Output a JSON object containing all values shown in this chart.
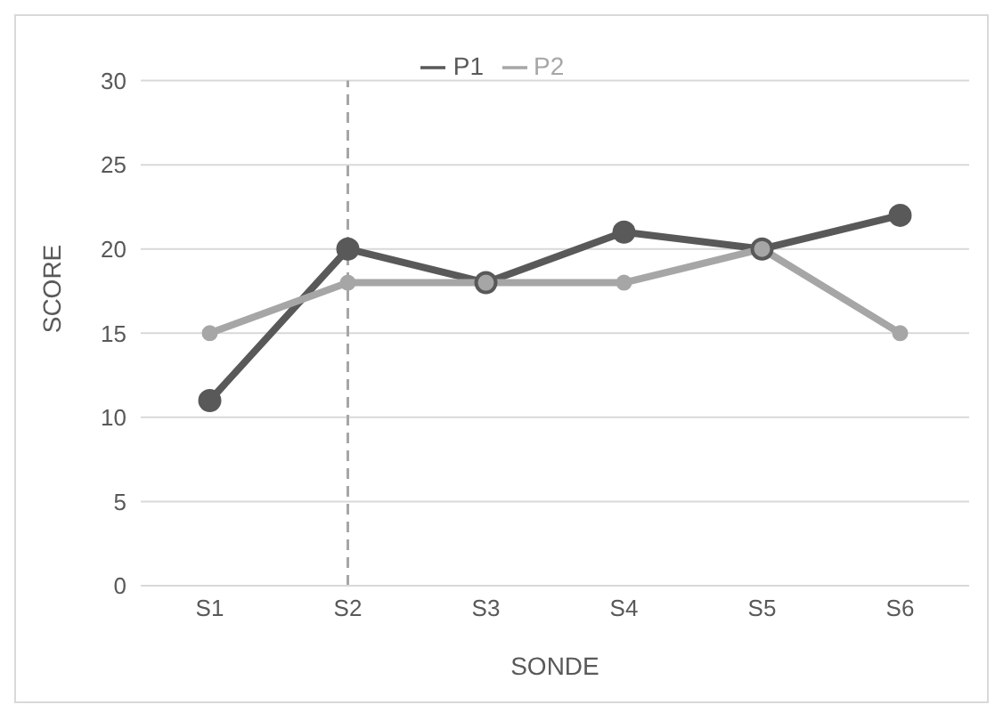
{
  "chart_data": {
    "type": "line",
    "xlabel": "SONDE",
    "ylabel": "SCORE",
    "categories": [
      "S1",
      "S2",
      "S3",
      "S4",
      "S5",
      "S6"
    ],
    "series": [
      {
        "name": "P1",
        "color": "#595959",
        "values": [
          11,
          20,
          18,
          21,
          20,
          22
        ]
      },
      {
        "name": "P2",
        "color": "#a6a6a6",
        "values": [
          15,
          18,
          18,
          18,
          20,
          15
        ]
      }
    ],
    "ylim": [
      0,
      30
    ],
    "yticks": [
      0,
      5,
      10,
      15,
      20,
      25,
      30
    ],
    "grid": "y",
    "legend": "top",
    "marker": "circle",
    "line_style": "solid",
    "ref_lines": [
      {
        "axis": "x",
        "value": "S2",
        "color": "#a6a6a6",
        "line_style": "dashed"
      }
    ]
  }
}
